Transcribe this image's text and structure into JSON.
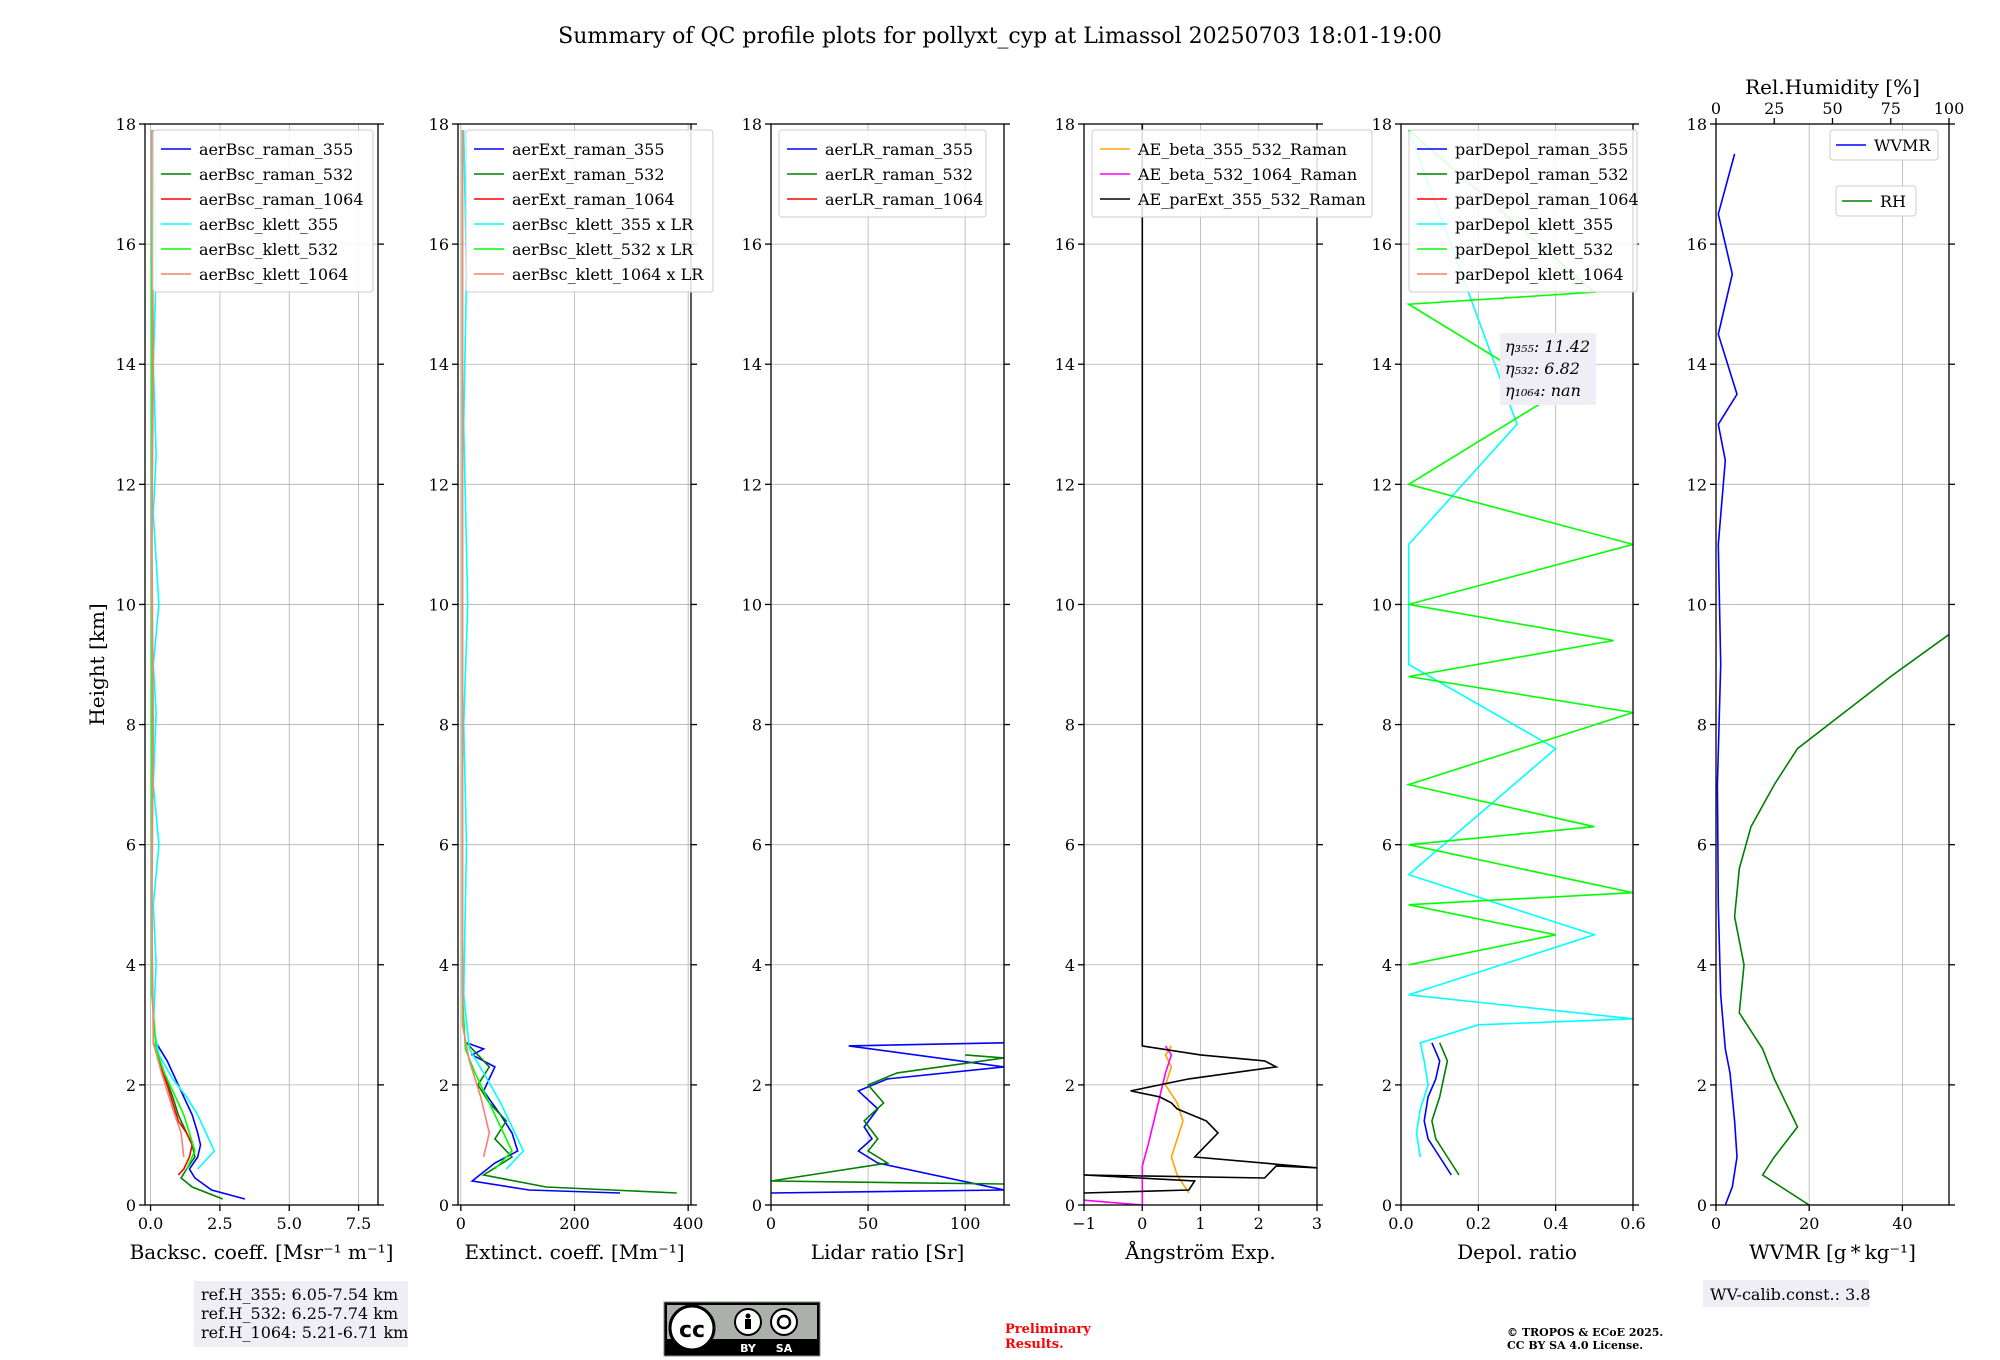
{
  "page": {
    "title": "Summary of QC profile plots for pollyxt_cyp at Limassol 20250703 18:01-19:00",
    "ref_heights": [
      "ref.H_355: 6.05-7.54 km",
      "ref.H_532: 6.25-7.74 km",
      "ref.H_1064: 5.21-6.71 km"
    ],
    "preliminary": [
      "Preliminary",
      "Results."
    ],
    "copyright": [
      "© TROPOS & ECoE 2025.",
      "CC BY SA 4.0 License."
    ],
    "license_badge": {
      "cc": "cc",
      "by": "BY",
      "sa": "SA"
    },
    "wv_calib": "WV-calib.const.: 3.8"
  },
  "colors": {
    "blue": "#0000ff",
    "green": "#008000",
    "red": "#ff0000",
    "cyan": "#00ffff",
    "lime": "#00ff00",
    "salmon": "#fa8072",
    "orange": "#ffa500",
    "magenta": "#ff00ff",
    "black": "#000000",
    "red_text": "#ff0000"
  },
  "chart_data": [
    {
      "type": "line",
      "id": "bsc",
      "xlabel": "Backsc. coeff. [Msr⁻¹ m⁻¹]",
      "ylabel": "Height [km]",
      "xlim": [
        -0.2,
        8.2
      ],
      "ylim": [
        0,
        18
      ],
      "xticks": [
        0,
        2.5,
        5,
        7.5
      ],
      "xticklabels": [
        "0.0",
        "2.5",
        "5.0",
        "7.5"
      ],
      "yticks": [
        0,
        2,
        4,
        6,
        8,
        10,
        12,
        14,
        16,
        18
      ],
      "grid": true,
      "legend": "top-right",
      "series": [
        {
          "name": "aerBsc_raman_355",
          "color": "blue",
          "x": [
            3.4,
            2.2,
            1.6,
            1.4,
            1.7,
            1.8,
            1.7,
            1.5,
            1.2,
            0.6,
            0.2
          ],
          "y": [
            0.1,
            0.25,
            0.45,
            0.6,
            0.8,
            1.0,
            1.2,
            1.5,
            1.8,
            2.4,
            2.7
          ]
        },
        {
          "name": "aerBsc_raman_532",
          "color": "green",
          "x": [
            2.6,
            1.5,
            1.1,
            1.3,
            1.6,
            1.5,
            1.3,
            1.0,
            0.8,
            0.4,
            0.1
          ],
          "y": [
            0.1,
            0.3,
            0.45,
            0.6,
            0.8,
            1.0,
            1.2,
            1.5,
            1.8,
            2.3,
            2.7
          ]
        },
        {
          "name": "aerBsc_raman_1064",
          "color": "red",
          "x": [
            1.0,
            1.2,
            1.4,
            1.5,
            1.3,
            1.0,
            0.8,
            0.6,
            0.3,
            0.1
          ],
          "y": [
            0.5,
            0.6,
            0.8,
            1.0,
            1.2,
            1.4,
            1.7,
            2.0,
            2.4,
            2.7
          ]
        },
        {
          "name": "aerBsc_klett_355",
          "color": "cyan",
          "x": [
            1.7,
            2.3,
            2.0,
            1.7,
            1.3,
            0.8,
            0.3,
            0.1,
            0.2,
            0.1,
            0.3,
            0.1,
            0.2,
            0.1,
            0.3,
            0.1,
            0.2,
            0.1,
            0.2,
            0.1
          ],
          "y": [
            0.6,
            0.9,
            1.2,
            1.5,
            1.8,
            2.1,
            2.5,
            3.0,
            4.0,
            5.0,
            6.0,
            7.0,
            8.2,
            9.0,
            10.0,
            11.5,
            12.5,
            14.0,
            15.5,
            17.9
          ]
        },
        {
          "name": "aerBsc_klett_532",
          "color": "lime",
          "x": [
            1.3,
            1.6,
            1.4,
            1.2,
            0.9,
            0.5,
            0.2,
            0.05,
            0.05
          ],
          "y": [
            0.6,
            0.9,
            1.2,
            1.5,
            1.8,
            2.2,
            2.6,
            3.5,
            17.9
          ]
        },
        {
          "name": "aerBsc_klett_1064",
          "color": "salmon",
          "x": [
            1.2,
            1.1,
            0.8,
            0.4,
            0.1,
            0.05,
            0.1,
            0.05,
            0.1,
            0.05
          ],
          "y": [
            0.8,
            1.2,
            1.6,
            2.2,
            2.7,
            5.0,
            8.0,
            11.0,
            14.0,
            17.9
          ]
        }
      ]
    },
    {
      "type": "line",
      "id": "ext",
      "xlabel": "Extinct. coeff. [Mm⁻¹]",
      "xlim": [
        -5,
        405
      ],
      "ylim": [
        0,
        18
      ],
      "xticks": [
        0,
        200,
        400
      ],
      "xticklabels": [
        "0",
        "200",
        "400"
      ],
      "yticks": [
        0,
        2,
        4,
        6,
        8,
        10,
        12,
        14,
        16,
        18
      ],
      "grid": true,
      "legend": "top-right",
      "series": [
        {
          "name": "aerExt_raman_355",
          "color": "blue",
          "x": [
            280,
            120,
            20,
            60,
            100,
            90,
            70,
            40,
            60,
            20,
            40,
            10
          ],
          "y": [
            0.2,
            0.25,
            0.4,
            0.7,
            0.9,
            1.2,
            1.5,
            1.9,
            2.3,
            2.5,
            2.6,
            2.7
          ]
        },
        {
          "name": "aerExt_raman_532",
          "color": "green",
          "x": [
            380,
            150,
            40,
            90,
            60,
            80,
            50,
            30,
            50,
            20,
            10
          ],
          "y": [
            0.2,
            0.3,
            0.5,
            0.8,
            1.1,
            1.4,
            1.7,
            2.0,
            2.3,
            2.6,
            2.7
          ]
        },
        {
          "name": "aerExt_raman_1064",
          "color": "red",
          "x": [],
          "y": []
        },
        {
          "name": "aerBsc_klett_355 x LR",
          "color": "cyan",
          "x": [
            80,
            110,
            90,
            70,
            40,
            15,
            5,
            10,
            5,
            12,
            5,
            10,
            5
          ],
          "y": [
            0.6,
            0.9,
            1.3,
            1.7,
            2.2,
            2.6,
            3.5,
            6.0,
            8.0,
            10.0,
            13.0,
            15.5,
            17.9
          ]
        },
        {
          "name": "aerBsc_klett_532 x LR",
          "color": "lime",
          "x": [
            60,
            90,
            70,
            50,
            25,
            8,
            3,
            3
          ],
          "y": [
            0.6,
            0.9,
            1.3,
            1.7,
            2.2,
            2.6,
            3.5,
            17.9
          ]
        },
        {
          "name": "aerBsc_klett_1064 x LR",
          "color": "salmon",
          "x": [
            40,
            50,
            35,
            15,
            3,
            3
          ],
          "y": [
            0.8,
            1.2,
            1.8,
            2.4,
            3.0,
            17.9
          ]
        }
      ]
    },
    {
      "type": "line",
      "id": "lr",
      "xlabel": "Lidar ratio [Sr]",
      "xlim": [
        0,
        120
      ],
      "ylim": [
        0,
        18
      ],
      "xticks": [
        0,
        50,
        100
      ],
      "xticklabels": [
        "0",
        "50",
        "100"
      ],
      "yticks": [
        0,
        2,
        4,
        6,
        8,
        10,
        12,
        14,
        16,
        18
      ],
      "grid": true,
      "legend": "top-right",
      "series": [
        {
          "name": "aerLR_raman_355",
          "color": "blue",
          "x": [
            0,
            120,
            55,
            45,
            52,
            48,
            55,
            45,
            60,
            120,
            40,
            120
          ],
          "y": [
            0.2,
            0.25,
            0.7,
            0.9,
            1.1,
            1.3,
            1.6,
            1.9,
            2.1,
            2.3,
            2.65,
            2.7
          ]
        },
        {
          "name": "aerLR_raman_532",
          "color": "green",
          "x": [
            120,
            0,
            60,
            50,
            55,
            48,
            58,
            50,
            65,
            120,
            100
          ],
          "y": [
            0.35,
            0.4,
            0.7,
            0.9,
            1.1,
            1.4,
            1.7,
            2.0,
            2.2,
            2.45,
            2.5
          ]
        },
        {
          "name": "aerLR_raman_1064",
          "color": "red",
          "x": [],
          "y": []
        }
      ]
    },
    {
      "type": "line",
      "id": "ae",
      "xlabel": "Ångström Exp.",
      "xlim": [
        -1,
        3
      ],
      "ylim": [
        0,
        18
      ],
      "xticks": [
        -1,
        0,
        1,
        2,
        3
      ],
      "xticklabels": [
        "−1",
        "0",
        "1",
        "2",
        "3"
      ],
      "yticks": [
        0,
        2,
        4,
        6,
        8,
        10,
        12,
        14,
        16,
        18
      ],
      "grid": true,
      "legend": "top-right",
      "series": [
        {
          "name": "AE_beta_355_532_Raman",
          "color": "orange",
          "x": [
            0.8,
            0.6,
            0.5,
            0.6,
            0.7,
            0.6,
            0.4,
            0.5,
            0.4,
            0.5
          ],
          "y": [
            0.2,
            0.5,
            0.8,
            1.1,
            1.4,
            1.7,
            2.0,
            2.3,
            2.5,
            2.65
          ]
        },
        {
          "name": "AE_beta_532_1064_Raman",
          "color": "magenta",
          "x": [
            -1.0,
            0.0,
            0.0,
            0.1,
            0.2,
            0.3,
            0.4,
            0.5,
            0.4
          ],
          "y": [
            0.08,
            0.0,
            0.65,
            1.0,
            1.4,
            1.8,
            2.2,
            2.5,
            2.65
          ]
        },
        {
          "name": "AE_parExt_355_532_Raman",
          "color": "black",
          "x": [
            -1.0,
            0.8,
            0.9,
            -1.0,
            2.1,
            2.3,
            3.0,
            0.9,
            1.3,
            1.1,
            0.6,
            0.5,
            0.3,
            -0.2,
            0.8,
            2.3,
            2.1,
            1.0,
            0.0,
            0.0
          ],
          "y": [
            0.2,
            0.25,
            0.4,
            0.5,
            0.45,
            0.65,
            0.62,
            0.8,
            1.2,
            1.4,
            1.6,
            1.7,
            1.8,
            1.9,
            2.1,
            2.3,
            2.4,
            2.5,
            2.65,
            18
          ]
        }
      ]
    },
    {
      "type": "line",
      "id": "depol",
      "xlabel": "Depol. ratio",
      "xlim": [
        0,
        0.6
      ],
      "ylim": [
        0,
        18
      ],
      "xticks": [
        0,
        0.2,
        0.4,
        0.6
      ],
      "xticklabels": [
        "0.0",
        "0.2",
        "0.4",
        "0.6"
      ],
      "yticks": [
        0,
        2,
        4,
        6,
        8,
        10,
        12,
        14,
        16,
        18
      ],
      "grid": true,
      "legend": "top-right",
      "annotations": [
        "η₃₅₅: 11.42",
        "η₅₃₂: 6.82",
        "η₁₀₆₄: nan"
      ],
      "series": [
        {
          "name": "parDepol_raman_355",
          "color": "blue",
          "x": [
            0.13,
            0.1,
            0.07,
            0.06,
            0.07,
            0.09,
            0.1,
            0.08
          ],
          "y": [
            0.5,
            0.8,
            1.1,
            1.4,
            1.8,
            2.1,
            2.4,
            2.7
          ]
        },
        {
          "name": "parDepol_raman_532",
          "color": "green",
          "x": [
            0.15,
            0.12,
            0.09,
            0.08,
            0.1,
            0.11,
            0.12,
            0.1
          ],
          "y": [
            0.5,
            0.8,
            1.1,
            1.4,
            1.8,
            2.1,
            2.4,
            2.7
          ]
        },
        {
          "name": "parDepol_raman_1064",
          "color": "red",
          "x": [],
          "y": []
        },
        {
          "name": "parDepol_klett_355",
          "color": "cyan",
          "x": [
            0.05,
            0.04,
            0.05,
            0.07,
            0.06,
            0.05,
            0.2,
            0.6,
            0.02,
            0.5,
            0.02,
            0.4,
            0.02,
            0.02,
            0.3,
            0.02
          ],
          "y": [
            0.8,
            1.2,
            1.6,
            2.0,
            2.4,
            2.7,
            3.0,
            3.1,
            3.5,
            4.5,
            5.5,
            7.6,
            9.0,
            11.0,
            13.0,
            17.9
          ]
        },
        {
          "name": "parDepol_klett_532",
          "color": "lime",
          "x": [
            0.02,
            0.4,
            0.02,
            0.6,
            0.02,
            0.5,
            0.02,
            0.6,
            0.02,
            0.55,
            0.02,
            0.6,
            0.02,
            0.4,
            0.02,
            0.5,
            0.02
          ],
          "y": [
            4.0,
            4.5,
            5.0,
            5.2,
            6.0,
            6.3,
            7.0,
            8.2,
            8.8,
            9.4,
            10.0,
            11.0,
            12.0,
            13.5,
            15.0,
            15.2,
            17.9
          ]
        },
        {
          "name": "parDepol_klett_1064",
          "color": "salmon",
          "x": [],
          "y": []
        }
      ]
    },
    {
      "type": "line",
      "id": "wv",
      "xlabel": "WVMR [g * kg⁻¹]",
      "x2label": "Rel.Humidity [%]",
      "xlim": [
        0,
        50
      ],
      "x2lim": [
        0,
        100
      ],
      "ylim": [
        0,
        18
      ],
      "xticks": [
        0,
        20,
        40
      ],
      "xticklabels": [
        "0",
        "20",
        "40"
      ],
      "x2ticks": [
        0,
        25,
        50,
        75,
        100
      ],
      "x2ticklabels": [
        "0",
        "25",
        "50",
        "75",
        "100"
      ],
      "yticks": [
        0,
        2,
        4,
        6,
        8,
        10,
        12,
        14,
        16,
        18
      ],
      "grid": true,
      "series": [
        {
          "name": "WVMR",
          "color": "blue",
          "axis": "x",
          "x": [
            2.0,
            3.5,
            4.5,
            4.0,
            3.5,
            3.0,
            2.0,
            1.0,
            0.5,
            0.3,
            1.0,
            0.5,
            2.0,
            0.5,
            4.5,
            0.5,
            3.5,
            0.5,
            4.0
          ],
          "y": [
            0.0,
            0.3,
            0.8,
            1.4,
            1.8,
            2.2,
            2.6,
            3.5,
            5.0,
            7.0,
            9.0,
            11.0,
            12.4,
            13.0,
            13.5,
            14.5,
            15.5,
            16.5,
            17.5
          ]
        },
        {
          "name": "RH",
          "color": "green",
          "axis": "x2",
          "x": [
            40,
            20,
            25,
            35,
            30,
            25,
            20,
            10,
            12,
            8,
            10,
            15,
            25,
            35,
            55,
            75,
            100
          ],
          "y": [
            0.0,
            0.5,
            0.8,
            1.3,
            1.7,
            2.1,
            2.6,
            3.2,
            4.0,
            4.8,
            5.6,
            6.3,
            7.0,
            7.6,
            8.2,
            8.8,
            9.5
          ]
        }
      ]
    }
  ]
}
